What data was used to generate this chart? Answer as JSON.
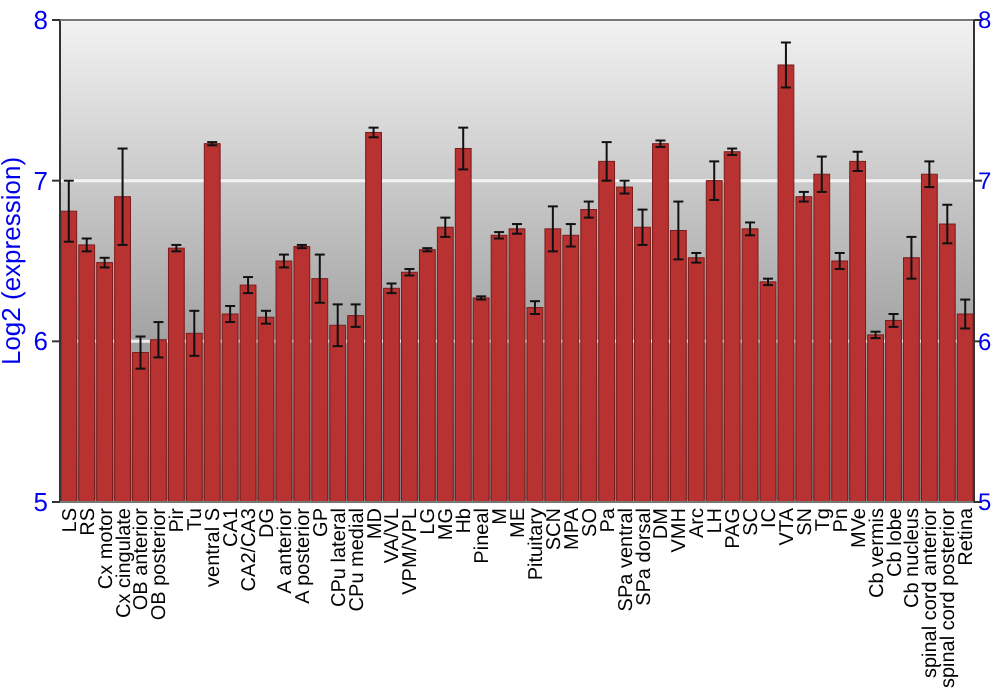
{
  "chart_data": {
    "type": "bar",
    "ylabel": "Log2 (expression)",
    "categories": [
      "LS",
      "RS",
      "Cx motor",
      "Cx cingulate",
      "OB anterior",
      "OB posterior",
      "Pir",
      "Tu",
      "ventral S",
      "CA1",
      "CA2/CA3",
      "DG",
      "A anterior",
      "A posterior",
      "GP",
      "CPu lateral",
      "CPu medial",
      "MD",
      "VA/VL",
      "VPM/VPL",
      "LG",
      "MG",
      "Hb",
      "Pineal",
      "M",
      "ME",
      "Pituitary",
      "SCN",
      "MPA",
      "SO",
      "Pa",
      "SPa ventral",
      "SPa dorsal",
      "DM",
      "VMH",
      "Arc",
      "LH",
      "PAG",
      "SC",
      "IC",
      "VTA",
      "SN",
      "Tg",
      "Pn",
      "MVe",
      "Cb vermis",
      "Cb lobe",
      "Cb nucleus",
      "spinal cord anterior",
      "spinal cord posterior",
      "Retina"
    ],
    "values": [
      6.81,
      6.6,
      6.49,
      6.9,
      5.93,
      6.01,
      6.58,
      6.05,
      7.23,
      6.17,
      6.35,
      6.15,
      6.5,
      6.59,
      6.39,
      6.1,
      6.16,
      7.3,
      6.33,
      6.43,
      6.57,
      6.71,
      7.2,
      6.27,
      6.66,
      6.7,
      6.21,
      6.7,
      6.66,
      6.82,
      7.12,
      6.96,
      6.71,
      7.23,
      6.69,
      6.52,
      7.0,
      7.18,
      6.7,
      6.37,
      7.72,
      6.9,
      7.04,
      6.5,
      7.12,
      6.04,
      6.13,
      6.52,
      7.04,
      6.73,
      6.17
    ],
    "errors": [
      0.19,
      0.04,
      0.03,
      0.3,
      0.1,
      0.11,
      0.02,
      0.14,
      0.01,
      0.05,
      0.05,
      0.04,
      0.04,
      0.01,
      0.15,
      0.13,
      0.07,
      0.03,
      0.03,
      0.02,
      0.01,
      0.06,
      0.13,
      0.01,
      0.02,
      0.03,
      0.04,
      0.14,
      0.07,
      0.05,
      0.12,
      0.04,
      0.11,
      0.02,
      0.18,
      0.03,
      0.12,
      0.02,
      0.04,
      0.02,
      0.14,
      0.03,
      0.11,
      0.05,
      0.06,
      0.02,
      0.04,
      0.13,
      0.08,
      0.12,
      0.09
    ],
    "color": "#b83232",
    "ylim": [
      5,
      8
    ],
    "yticks": [
      5,
      6,
      7,
      8
    ],
    "y2lim": [
      5,
      8
    ],
    "y2ticks": [
      5,
      6,
      7,
      8
    ],
    "grid": "y"
  }
}
